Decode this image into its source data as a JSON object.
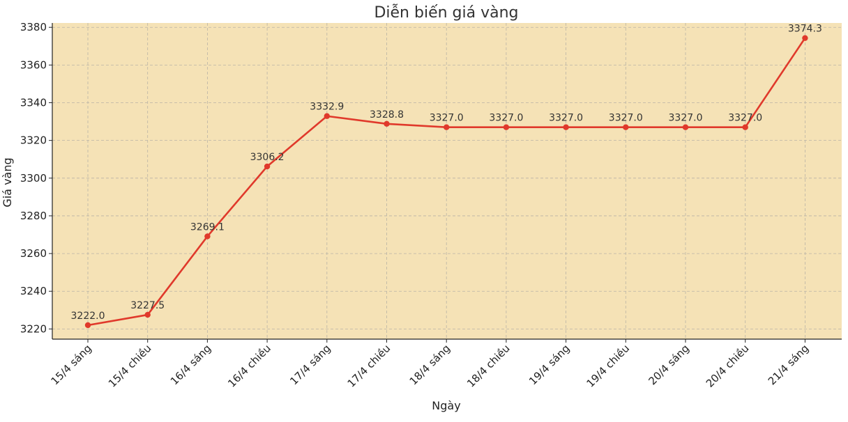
{
  "chart_data": {
    "type": "line",
    "title": "Diễn biến giá vàng",
    "xlabel": "Ngày",
    "ylabel": "Giá vàng",
    "categories": [
      "15/4 sáng",
      "15/4 chiều",
      "16/4 sáng",
      "16/4 chiều",
      "17/4 sáng",
      "17/4 chiều",
      "18/4 sáng",
      "18/4 chiều",
      "19/4 sáng",
      "19/4 chiều",
      "20/4 sáng",
      "20/4 chiều",
      "21/4 sáng"
    ],
    "values": [
      3222.0,
      3227.5,
      3269.1,
      3306.2,
      3332.9,
      3328.8,
      3327.0,
      3327.0,
      3327.0,
      3327.0,
      3327.0,
      3327.0,
      3374.3
    ],
    "data_labels": [
      "3222.0",
      "3227.5",
      "3269.1",
      "3306.2",
      "3332.9",
      "3328.8",
      "3327.0",
      "3327.0",
      "3327.0",
      "3327.0",
      "3327.0",
      "3327.0",
      "3374.3"
    ],
    "ylim": [
      3214.6,
      3382.3
    ],
    "yticks": [
      3220,
      3240,
      3260,
      3280,
      3300,
      3320,
      3340,
      3360,
      3380
    ],
    "grid": true,
    "colors": {
      "line": "#e0392b",
      "plot_background": "#f5e2b6"
    }
  }
}
